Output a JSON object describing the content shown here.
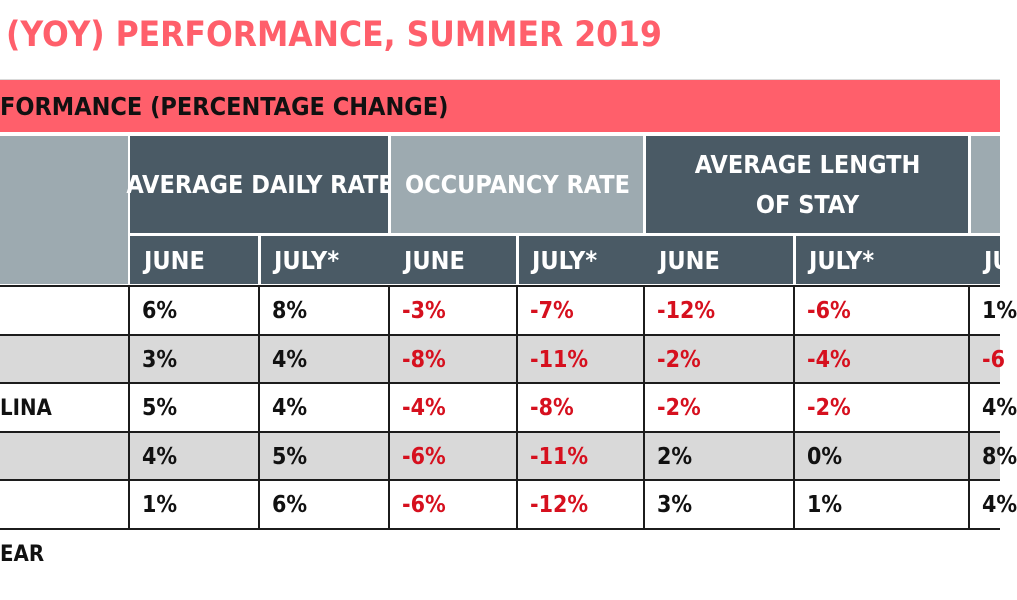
{
  "title": "(YOY) PERFORMANCE, SUMMER 2019",
  "banner": "FORMANCE (PERCENTAGE CHANGE)",
  "footnote": "EAR",
  "colors": {
    "accent": "#ff5f6b",
    "header_dark": "#4a5a65",
    "header_light": "#9daab0",
    "negative": "#d6101e",
    "row_alt": "#d9d9d9"
  },
  "chart_data": {
    "type": "table",
    "title": "(YOY) PERFORMANCE, SUMMER 2019",
    "subtitle": "FORMANCE (PERCENTAGE CHANGE)",
    "column_groups": [
      {
        "label": "AVERAGE DAILY RATE",
        "columns": [
          "JUNE",
          "JULY*"
        ]
      },
      {
        "label": "OCCUPANCY RATE",
        "columns": [
          "JUNE",
          "JULY*"
        ]
      },
      {
        "label": "AVERAGE LENGTH OF STAY",
        "columns": [
          "JUNE",
          "JULY*"
        ]
      },
      {
        "label": "",
        "columns": [
          "JU"
        ]
      }
    ],
    "rows": [
      {
        "label": "",
        "values": [
          "6%",
          "8%",
          "-3%",
          "-7%",
          "-12%",
          "-6%",
          "1%"
        ]
      },
      {
        "label": "",
        "values": [
          "3%",
          "4%",
          "-8%",
          "-11%",
          "-2%",
          "-4%",
          "-6"
        ]
      },
      {
        "label": "LINA",
        "values": [
          "5%",
          "4%",
          "-4%",
          "-8%",
          "-2%",
          "-2%",
          "4%"
        ]
      },
      {
        "label": "",
        "values": [
          "4%",
          "5%",
          "-6%",
          "-11%",
          "2%",
          "0%",
          "8%"
        ]
      },
      {
        "label": "",
        "values": [
          "1%",
          "6%",
          "-6%",
          "-12%",
          "3%",
          "1%",
          "4%"
        ]
      }
    ],
    "footnote": "EAR"
  }
}
